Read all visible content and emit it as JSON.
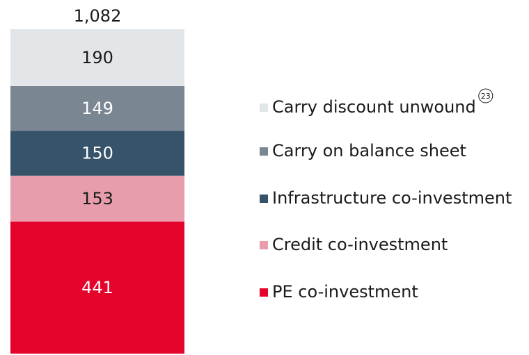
{
  "chart_data": {
    "type": "stacked_bar",
    "total": {
      "value": 1082,
      "label": "1,082"
    },
    "footnote": "23",
    "series": [
      {
        "name": "Carry discount unwound",
        "color": "#e3e6e9",
        "values": [
          190
        ]
      },
      {
        "name": "Carry on balance sheet",
        "color": "#7a8793",
        "values": [
          149
        ]
      },
      {
        "name": "Infrastructure co-investment",
        "color": "#36536a",
        "values": [
          150
        ]
      },
      {
        "name": "Credit co-investment",
        "color": "#e79dac",
        "values": [
          153
        ]
      },
      {
        "name": "PE co-investment",
        "color": "#e4032b",
        "values": [
          441
        ]
      }
    ]
  }
}
